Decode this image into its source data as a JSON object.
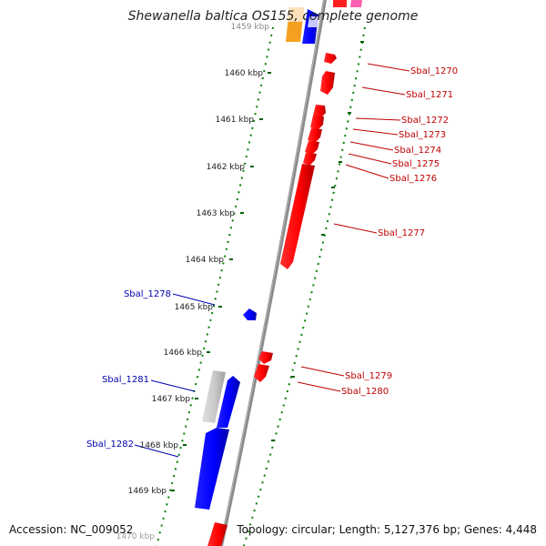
{
  "title": "Shewanella baltica OS155, complete genome",
  "footer": {
    "accession": "Accession: NC_009052",
    "topology": "Topology: circular; Length: 5,127,376 bp; Genes: 4,448"
  },
  "ticks": [
    {
      "id": "t1459",
      "label": "1459 kbp"
    },
    {
      "id": "t1460",
      "label": "1460 kbp"
    },
    {
      "id": "t1461",
      "label": "1461 kbp"
    },
    {
      "id": "t1462",
      "label": "1462 kbp"
    },
    {
      "id": "t1463",
      "label": "1463 kbp"
    },
    {
      "id": "t1464",
      "label": "1464 kbp"
    },
    {
      "id": "t1465",
      "label": "1465 kbp"
    },
    {
      "id": "t1466",
      "label": "1466 kbp"
    },
    {
      "id": "t1467",
      "label": "1467 kbp"
    },
    {
      "id": "t1468",
      "label": "1468 kbp"
    },
    {
      "id": "t1469",
      "label": "1469 kbp"
    },
    {
      "id": "t1470",
      "label": "1470 kbp"
    }
  ],
  "genes": [
    {
      "id": "Sbal_1270",
      "label": "Sbal_1270",
      "strand": "forward"
    },
    {
      "id": "Sbal_1271",
      "label": "Sbal_1271",
      "strand": "forward"
    },
    {
      "id": "Sbal_1272",
      "label": "Sbal_1272",
      "strand": "forward"
    },
    {
      "id": "Sbal_1273",
      "label": "Sbal_1273",
      "strand": "forward"
    },
    {
      "id": "Sbal_1274",
      "label": "Sbal_1274",
      "strand": "forward"
    },
    {
      "id": "Sbal_1275",
      "label": "Sbal_1275",
      "strand": "forward"
    },
    {
      "id": "Sbal_1276",
      "label": "Sbal_1276",
      "strand": "forward"
    },
    {
      "id": "Sbal_1277",
      "label": "Sbal_1277",
      "strand": "forward"
    },
    {
      "id": "Sbal_1278",
      "label": "Sbal_1278",
      "strand": "reverse"
    },
    {
      "id": "Sbal_1279",
      "label": "Sbal_1279",
      "strand": "forward"
    },
    {
      "id": "Sbal_1280",
      "label": "Sbal_1280",
      "strand": "forward"
    },
    {
      "id": "Sbal_1281",
      "label": "Sbal_1281",
      "strand": "reverse"
    },
    {
      "id": "Sbal_1282",
      "label": "Sbal_1282",
      "strand": "reverse"
    }
  ],
  "colors": {
    "forward": "#ff0000",
    "reverse": "#0000ff",
    "pseudo": "#c0c0c0",
    "backbone": "#808080",
    "ticks": "#008000",
    "label_forward": "#c00000",
    "label_reverse": "#0000b0"
  }
}
